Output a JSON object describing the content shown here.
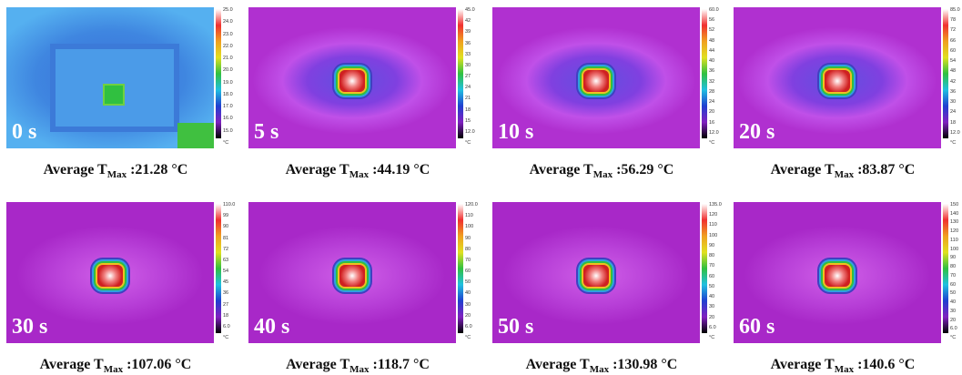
{
  "panels": [
    {
      "time": "0 s",
      "ticks": [
        "25.0",
        "24.0",
        "23.0",
        "22.0",
        "21.0",
        "20.0",
        "19.0",
        "18.0",
        "17.0",
        "16.0",
        "15.0",
        "°C"
      ],
      "caption": {
        "prefix": "Average T",
        "subscript": "Max",
        "value": ":21.28 °C"
      }
    },
    {
      "time": "5 s",
      "ticks": [
        "45.0",
        "42",
        "39",
        "36",
        "33",
        "30",
        "27",
        "24",
        "21",
        "18",
        "15",
        "12.0",
        "°C"
      ],
      "caption": {
        "prefix": "Average T",
        "subscript": "Max",
        "value": ":44.19 °C"
      }
    },
    {
      "time": "10 s",
      "ticks": [
        "60.0",
        "56",
        "52",
        "48",
        "44",
        "40",
        "36",
        "32",
        "28",
        "24",
        "20",
        "16",
        "12.0",
        "°C"
      ],
      "caption": {
        "prefix": "Average T",
        "subscript": "Max",
        "value": ":56.29 °C"
      }
    },
    {
      "time": "20 s",
      "ticks": [
        "85.0",
        "78",
        "72",
        "66",
        "60",
        "54",
        "48",
        "42",
        "36",
        "30",
        "24",
        "18",
        "12.0",
        "°C"
      ],
      "caption": {
        "prefix": "Average T",
        "subscript": "Max",
        "value": ":83.87 °C"
      }
    },
    {
      "time": "30 s",
      "ticks": [
        "110.0",
        "99",
        "90",
        "81",
        "72",
        "63",
        "54",
        "45",
        "36",
        "27",
        "18",
        "6.0",
        "°C"
      ],
      "caption": {
        "prefix": "Average T",
        "subscript": "Max",
        "value": ":107.06 °C"
      }
    },
    {
      "time": "40 s",
      "ticks": [
        "120.0",
        "110",
        "100",
        "90",
        "80",
        "70",
        "60",
        "50",
        "40",
        "30",
        "20",
        "6.0",
        "°C"
      ],
      "caption": {
        "prefix": "Average T",
        "subscript": "Max",
        "value": ":118.7 °C"
      }
    },
    {
      "time": "50 s",
      "ticks": [
        "135.0",
        "120",
        "110",
        "100",
        "90",
        "80",
        "70",
        "60",
        "50",
        "40",
        "30",
        "20",
        "6.0",
        "°C"
      ],
      "caption": {
        "prefix": "Average T",
        "subscript": "Max",
        "value": ":130.98 °C"
      }
    },
    {
      "time": "60 s",
      "ticks": [
        "150",
        "140",
        "130",
        "120",
        "110",
        "100",
        "90",
        "80",
        "70",
        "60",
        "50",
        "40",
        "30",
        "20",
        "6.0",
        "°C"
      ],
      "caption": {
        "prefix": "Average T",
        "subscript": "Max",
        "value": ":140.6 °C"
      }
    }
  ]
}
